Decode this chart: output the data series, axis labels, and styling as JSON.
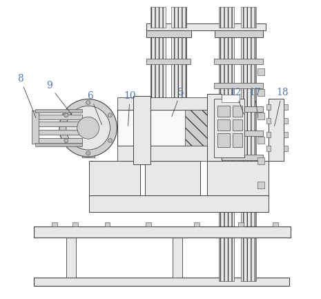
{
  "bg_color": "#ffffff",
  "line_color": "#404040",
  "label_color": "#5577aa",
  "fill_white": "#f8f8f8",
  "fill_light": "#e8e8e8",
  "fill_med": "#d0d0d0",
  "fill_dark": "#b8b8b8",
  "fill_stripe": "#c8c8c8"
}
